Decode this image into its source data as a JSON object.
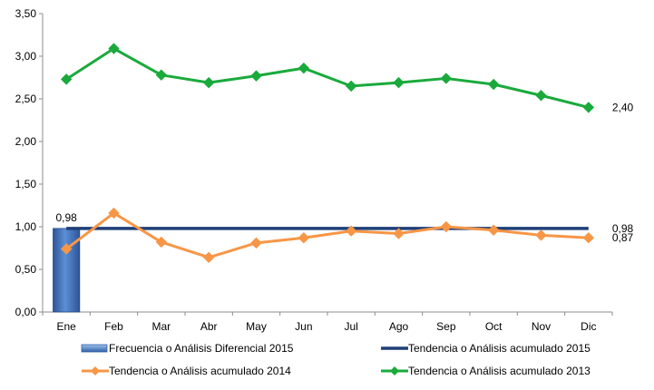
{
  "chart_data": {
    "type": "line",
    "categories": [
      "Ene",
      "Feb",
      "Mar",
      "Abr",
      "May",
      "Jun",
      "Jul",
      "Ago",
      "Sep",
      "Oct",
      "Nov",
      "Dic"
    ],
    "ylim": [
      0,
      3.5
    ],
    "yticks": [
      "0,00",
      "0,50",
      "1,00",
      "1,50",
      "2,00",
      "2,50",
      "3,00",
      "3,50"
    ],
    "grid": false,
    "legend_position": "bottom",
    "series": [
      {
        "name": "Frecuencia o Análisis Diferencial 2015",
        "kind": "bar",
        "color": "#4f81bd",
        "values": [
          0.98,
          null,
          null,
          null,
          null,
          null,
          null,
          null,
          null,
          null,
          null,
          null
        ]
      },
      {
        "name": "Tendencia o Análisis acumulado 2015",
        "kind": "line",
        "color": "#1f3f77",
        "values": [
          0.98,
          0.98,
          0.98,
          0.98,
          0.98,
          0.98,
          0.98,
          0.98,
          0.98,
          0.98,
          0.98,
          0.98
        ]
      },
      {
        "name": "Tendencia o Análisis acumulado 2014",
        "kind": "line",
        "marker": "diamond",
        "color": "#f79646",
        "values": [
          0.74,
          1.16,
          0.82,
          0.64,
          0.81,
          0.87,
          0.95,
          0.92,
          1.0,
          0.96,
          0.9,
          0.87
        ]
      },
      {
        "name": "Tendencia o Análisis acumulado 2013",
        "kind": "line",
        "marker": "diamond",
        "color": "#1aaa3c",
        "values": [
          2.73,
          3.09,
          2.78,
          2.69,
          2.77,
          2.86,
          2.65,
          2.69,
          2.74,
          2.67,
          2.54,
          2.4
        ]
      }
    ],
    "data_labels": [
      {
        "series": 0,
        "index": 0,
        "text": "0,98"
      },
      {
        "series": 1,
        "index": 11,
        "text": "0,98"
      },
      {
        "series": 2,
        "index": 11,
        "text": "0,87"
      },
      {
        "series": 3,
        "index": 11,
        "text": "2,40"
      }
    ]
  }
}
